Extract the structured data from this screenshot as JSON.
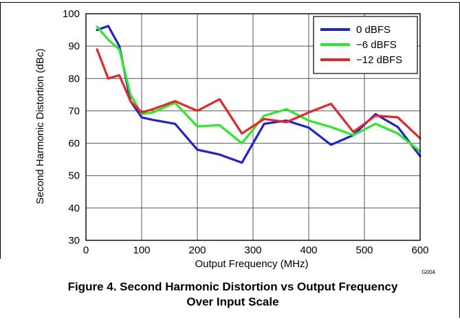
{
  "figure": {
    "caption_line1": "Figure 4. Second Harmonic Distortion vs Output Frequency",
    "caption_line2": "Over Input Scale",
    "code": "G004"
  },
  "chart_data": {
    "type": "line",
    "title": "",
    "xlabel": "Output Frequency (MHz)",
    "ylabel": "Second Harmonic Distortion (dBc)",
    "xlim": [
      0,
      600
    ],
    "ylim": [
      30,
      100
    ],
    "xticks": [
      0,
      100,
      200,
      300,
      400,
      500,
      600
    ],
    "yticks": [
      30,
      40,
      50,
      60,
      70,
      80,
      90,
      100
    ],
    "grid": true,
    "legend_position": "top-right",
    "series": [
      {
        "name": "0 dBFS",
        "color": "#1f1fdf",
        "x": [
          20,
          40,
          60,
          80,
          100,
          120,
          160,
          200,
          240,
          280,
          320,
          360,
          400,
          440,
          480,
          520,
          560,
          600
        ],
        "y": [
          95,
          96.2,
          90,
          73,
          68,
          67.2,
          66,
          58,
          56.5,
          54,
          66,
          67,
          64.8,
          59.5,
          62.5,
          69,
          65,
          56
        ]
      },
      {
        "name": "−6 dBFS",
        "color": "#22ee22",
        "x": [
          20,
          40,
          60,
          80,
          100,
          120,
          160,
          200,
          240,
          280,
          320,
          360,
          400,
          440,
          480,
          520,
          560,
          600
        ],
        "y": [
          96,
          92,
          89,
          75,
          69,
          69.5,
          72.5,
          65.2,
          65.6,
          60,
          68.5,
          70.5,
          67,
          65,
          62.5,
          66,
          63,
          57.5
        ]
      },
      {
        "name": "−12 dBFS",
        "color": "#ee2222",
        "x": [
          20,
          40,
          60,
          80,
          100,
          120,
          160,
          200,
          240,
          280,
          320,
          360,
          400,
          440,
          480,
          520,
          560,
          600
        ],
        "y": [
          89,
          80,
          81,
          73,
          69.5,
          70.5,
          73,
          70,
          73.6,
          63,
          67.5,
          66.5,
          69.5,
          72.2,
          63.5,
          68.5,
          68,
          61.5
        ]
      }
    ]
  }
}
